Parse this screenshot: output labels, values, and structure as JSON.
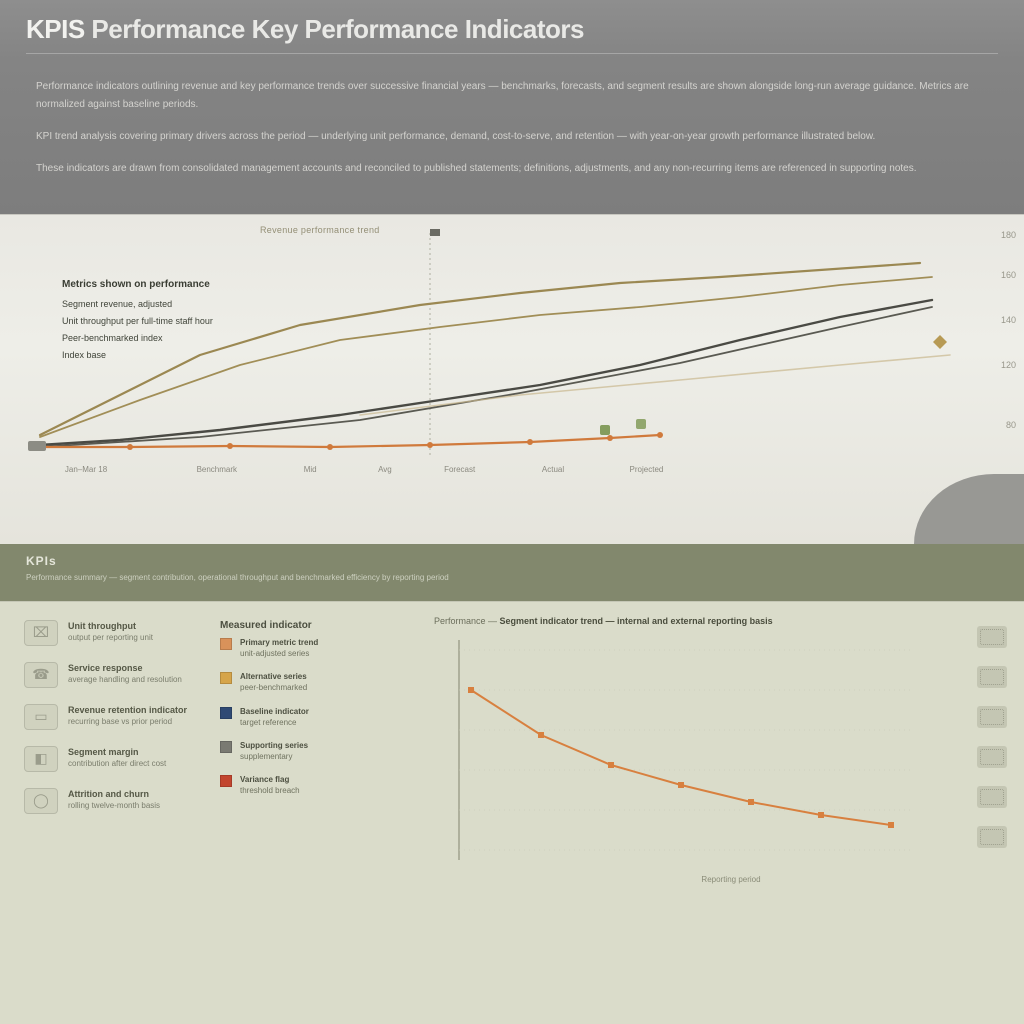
{
  "header": {
    "title_prefix": "KPIS ",
    "title_main": "Performance Key Performance Indicators"
  },
  "intro": {
    "p1": "Performance indicators outlining revenue and key performance trends over successive financial years — benchmarks, forecasts, and segment results are shown alongside long-run average guidance. Metrics are normalized against baseline periods.",
    "p2": "KPI trend analysis covering primary drivers across the period — underlying unit performance, demand, cost-to-serve, and retention — with year-on-year growth performance illustrated below.",
    "p3": "These indicators are drawn from consolidated management accounts and reconciled to published statements; definitions, adjustments, and any non-recurring items are referenced in supporting notes."
  },
  "chart1": {
    "top_label": "Revenue performance trend",
    "legend": {
      "title": "Metrics shown on performance",
      "items": [
        "Segment revenue, adjusted",
        "Unit throughput per full-time staff hour",
        "Peer-benchmarked index",
        "Index base"
      ]
    },
    "x_labels": [
      "Jan–Mar 18",
      "Benchmark",
      "Mid",
      "Avg",
      "Forecast",
      "Actual",
      "Projected",
      ""
    ],
    "x_positions_pct": [
      6,
      20,
      30,
      38,
      46,
      56,
      66,
      80
    ],
    "y_ticks": [
      {
        "label": "180",
        "top_pct": 2
      },
      {
        "label": "160",
        "top_pct": 18
      },
      {
        "label": "140",
        "top_pct": 36
      },
      {
        "label": "120",
        "top_pct": 54
      },
      {
        "label": "80",
        "top_pct": 78
      }
    ],
    "background_color": "#eaeae2",
    "series": [
      {
        "name": "upper-brown",
        "color": "#9b8852",
        "width": 2.2,
        "points": [
          [
            40,
            220
          ],
          [
            120,
            180
          ],
          [
            200,
            140
          ],
          [
            300,
            110
          ],
          [
            420,
            90
          ],
          [
            520,
            78
          ],
          [
            620,
            68
          ],
          [
            720,
            62
          ],
          [
            820,
            55
          ],
          [
            920,
            48
          ]
        ]
      },
      {
        "name": "upper-brown-2",
        "color": "#a18e57",
        "width": 1.8,
        "points": [
          [
            40,
            222
          ],
          [
            140,
            185
          ],
          [
            240,
            150
          ],
          [
            340,
            125
          ],
          [
            440,
            112
          ],
          [
            540,
            100
          ],
          [
            640,
            92
          ],
          [
            740,
            82
          ],
          [
            840,
            70
          ],
          [
            932,
            62
          ]
        ]
      },
      {
        "name": "mid-dark",
        "color": "#4a4a44",
        "width": 2.4,
        "points": [
          [
            40,
            230
          ],
          [
            120,
            225
          ],
          [
            220,
            215
          ],
          [
            340,
            200
          ],
          [
            440,
            185
          ],
          [
            540,
            170
          ],
          [
            640,
            150
          ],
          [
            740,
            125
          ],
          [
            840,
            102
          ],
          [
            932,
            85
          ]
        ]
      },
      {
        "name": "mid-dark-2",
        "color": "#5a5a52",
        "width": 1.8,
        "points": [
          [
            40,
            232
          ],
          [
            200,
            222
          ],
          [
            360,
            205
          ],
          [
            520,
            178
          ],
          [
            680,
            148
          ],
          [
            840,
            112
          ],
          [
            932,
            92
          ]
        ]
      },
      {
        "name": "tan-fade",
        "color": "#c9b88e",
        "width": 1.6,
        "opacity": 0.7,
        "points": [
          [
            360,
            200
          ],
          [
            520,
            180
          ],
          [
            680,
            165
          ],
          [
            840,
            150
          ],
          [
            950,
            140
          ]
        ]
      },
      {
        "name": "base-orange",
        "color": "#d07a3c",
        "width": 2.2,
        "markers": true,
        "points": [
          [
            40,
            232
          ],
          [
            130,
            232
          ],
          [
            230,
            231
          ],
          [
            330,
            232
          ],
          [
            430,
            230
          ],
          [
            530,
            227
          ],
          [
            610,
            223
          ],
          [
            660,
            220
          ]
        ]
      }
    ],
    "midline_x": 430,
    "marker_accent_color": "#6c8a3c",
    "marker_diamond_color": "#b79a54"
  },
  "sep": {
    "title": "KPIs",
    "caption": "Performance summary — segment contribution, operational throughput and benchmarked efficiency by reporting period"
  },
  "lower": {
    "icons": [
      {
        "glyph": "⌧",
        "title": "Unit throughput",
        "caption": "output per reporting unit"
      },
      {
        "glyph": "☎",
        "title": "Service response",
        "caption": "average handling and resolution"
      },
      {
        "glyph": "▭",
        "title": "Revenue retention indicator",
        "caption": "recurring base vs prior period"
      },
      {
        "glyph": "◧",
        "title": "Segment margin",
        "caption": "contribution after direct cost"
      },
      {
        "glyph": "◯",
        "title": "Attrition and churn",
        "caption": "rolling twelve-month basis"
      }
    ],
    "legend2": {
      "title": "Measured indicator",
      "items": [
        {
          "color": "#d9925a",
          "title": "Primary metric trend",
          "caption": "unit-adjusted series"
        },
        {
          "color": "#d6a54a",
          "title": "Alternative series",
          "caption": "peer-benchmarked"
        },
        {
          "color": "#2f4a74",
          "title": "Baseline indicator",
          "caption": "target reference"
        },
        {
          "color": "#7a7a72",
          "title": "Supporting series",
          "caption": "supplementary"
        },
        {
          "color": "#c2452e",
          "title": "Variance flag",
          "caption": "threshold breach"
        }
      ]
    },
    "chart2": {
      "title_prefix": "Performance — ",
      "title_bold": "Segment indicator trend — internal and external reporting basis",
      "axis_color": "#9fa18d",
      "grid_color": "#c7c9b6",
      "series": {
        "name": "decline-orange",
        "color": "#d8803f",
        "width": 2,
        "markers": true,
        "points": [
          [
            40,
            60
          ],
          [
            110,
            105
          ],
          [
            180,
            135
          ],
          [
            250,
            155
          ],
          [
            320,
            172
          ],
          [
            390,
            185
          ],
          [
            460,
            195
          ]
        ]
      },
      "x_footer_label": "Reporting period"
    }
  }
}
